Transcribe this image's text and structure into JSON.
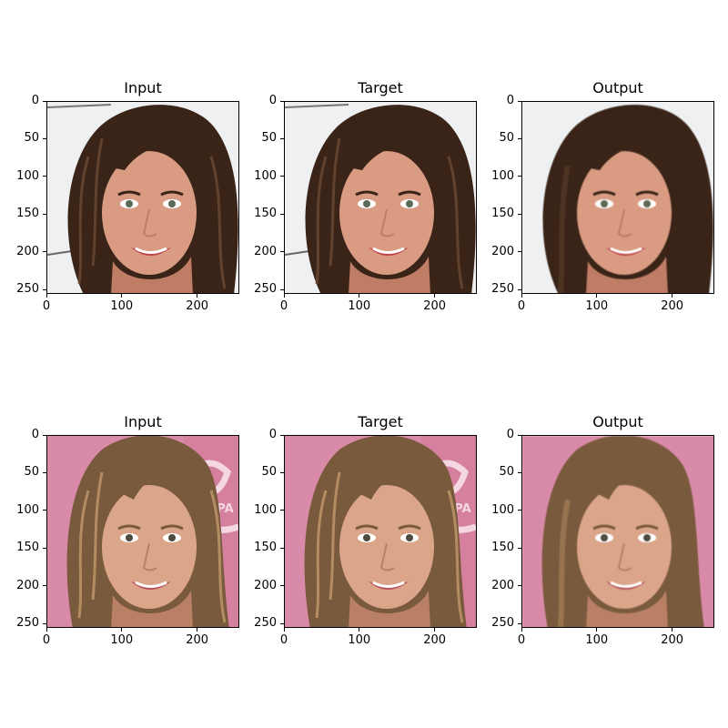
{
  "figure": {
    "rows": [
      {
        "name": "row-1",
        "panels": [
          {
            "title": "Input",
            "variant": "input"
          },
          {
            "title": "Target",
            "variant": "target"
          },
          {
            "title": "Output",
            "variant": "output"
          }
        ],
        "palette": {
          "background": "#eef0f2",
          "hair": "#3a2418",
          "hair_highlight": "#6b4a33",
          "skin": "#d99b82",
          "skin_shadow": "#c07d66",
          "lips": "#c1444d",
          "eyes": "#5b6a55"
        }
      },
      {
        "name": "row-2",
        "panels": [
          {
            "title": "Input",
            "variant": "input"
          },
          {
            "title": "Target",
            "variant": "target"
          },
          {
            "title": "Output",
            "variant": "output"
          }
        ],
        "palette": {
          "background": "#d98aa8",
          "hair": "#7a5a3c",
          "hair_highlight": "#c29a6b",
          "skin": "#dba58a",
          "skin_shadow": "#b98066",
          "lips": "#b5525a",
          "eyes": "#4d4c3f"
        },
        "sign_text": "ESPA"
      }
    ],
    "axes": {
      "x_ticks": [
        "0",
        "100",
        "200"
      ],
      "y_ticks": [
        "0",
        "50",
        "100",
        "150",
        "200",
        "250"
      ]
    }
  }
}
